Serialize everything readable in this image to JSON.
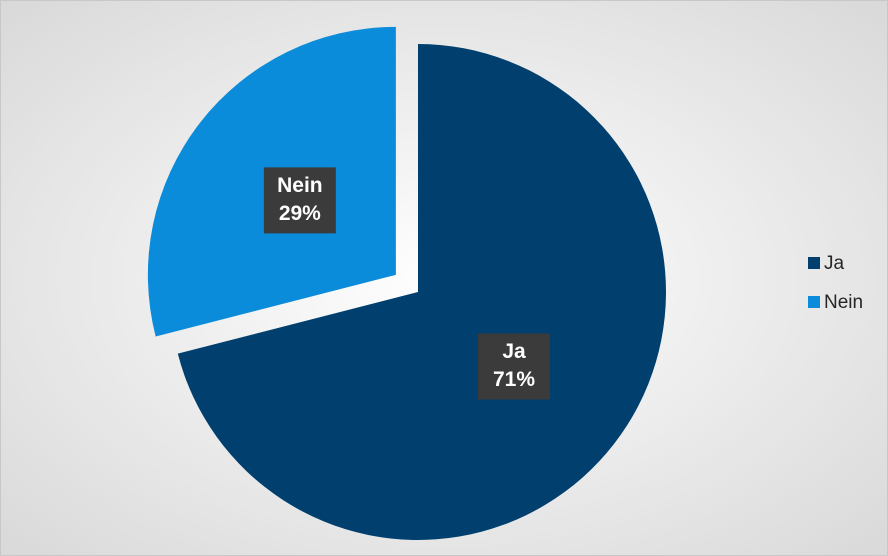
{
  "chart_data": {
    "type": "pie",
    "categories": [
      "Ja",
      "Nein"
    ],
    "values": [
      71,
      29
    ],
    "value_labels": [
      "71%",
      "29%"
    ],
    "colors": [
      "#003f6e",
      "#0b8cda"
    ],
    "exploded": [
      false,
      true
    ],
    "legend": "right"
  }
}
